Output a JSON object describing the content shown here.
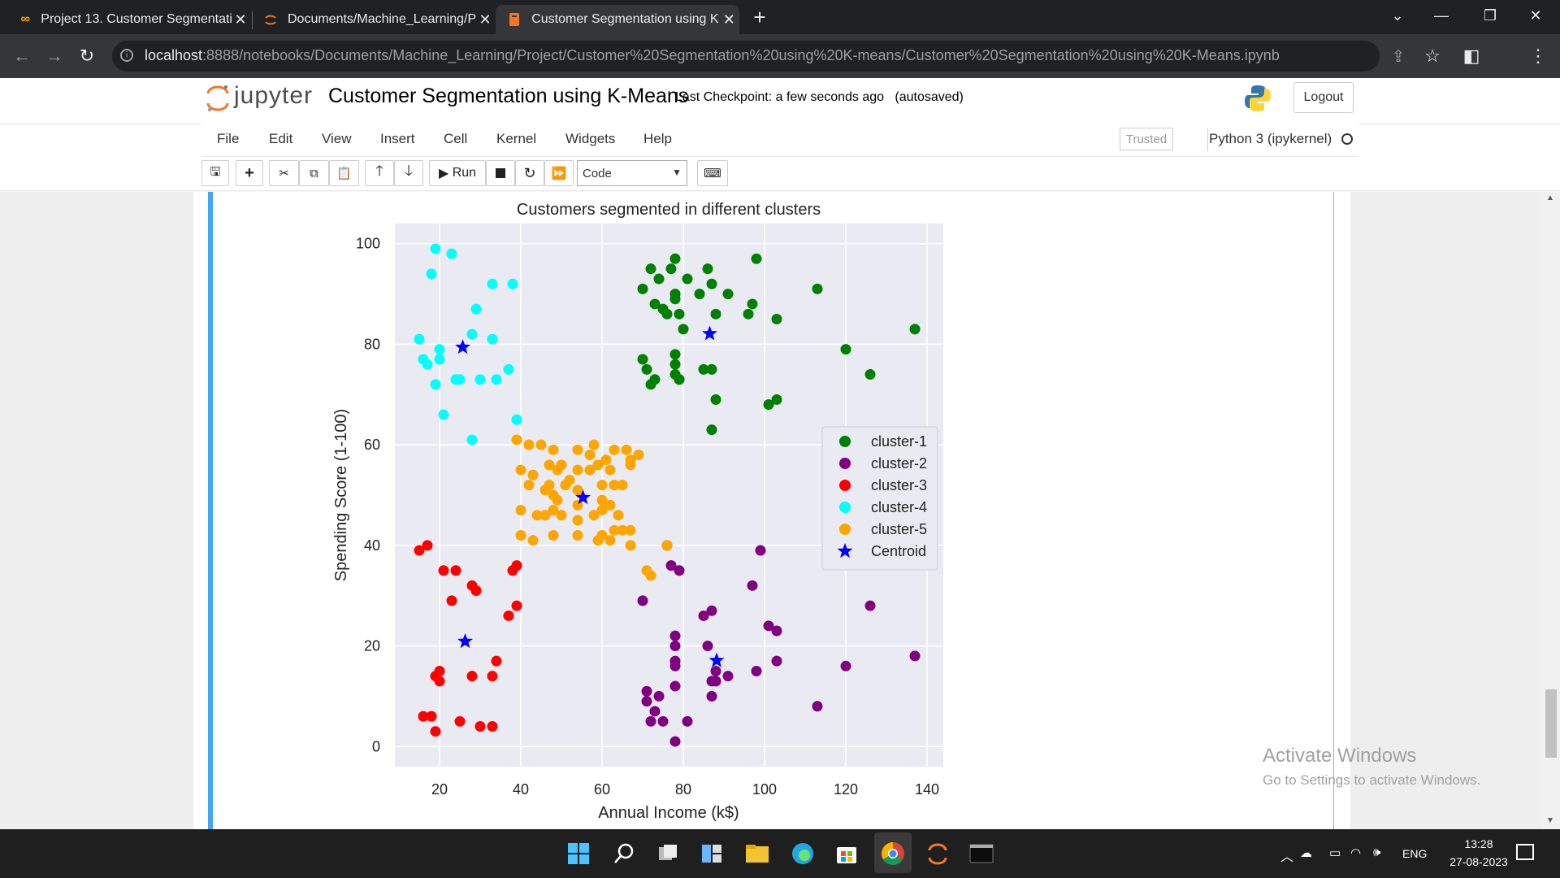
{
  "browser": {
    "tabs": [
      {
        "title": "Project 13. Customer Segmentati",
        "icon": "colab-icon",
        "active": false
      },
      {
        "title": "Documents/Machine_Learning/P",
        "icon": "jupyter-icon",
        "active": false
      },
      {
        "title": "Customer Segmentation using K",
        "icon": "notebook-icon",
        "active": true
      }
    ],
    "url_host": "localhost",
    "url_path": ":8888/notebooks/Documents/Machine_Learning/Project/Customer%20Segmentation%20using%20K-means/Customer%20Segmentation%20using%20K-Means.ipynb"
  },
  "jupyter": {
    "logo_text": "jupyter",
    "notebook_title": "Customer Segmentation using K-Means",
    "checkpoint": "Last Checkpoint: a few seconds ago",
    "autosaved": "(autosaved)",
    "logout": "Logout",
    "menu": [
      "File",
      "Edit",
      "View",
      "Insert",
      "Cell",
      "Kernel",
      "Widgets",
      "Help"
    ],
    "trusted": "Trusted",
    "kernel": "Python 3 (ipykernel)",
    "toolbar": {
      "run_label": "Run",
      "cell_type": "Code"
    }
  },
  "watermark": {
    "line1": "Activate Windows",
    "line2": "Go to Settings to activate Windows."
  },
  "taskbar": {
    "lang": "ENG",
    "time": "13:28",
    "date": "27-08-2023"
  },
  "chart_data": {
    "type": "scatter",
    "title": "Customers segmented in different clusters",
    "xlabel": "Annual Income (k$)",
    "ylabel": "Spending Score (1-100)",
    "xlim": [
      9,
      144
    ],
    "ylim": [
      -4,
      104
    ],
    "xticks": [
      20,
      40,
      60,
      80,
      100,
      120,
      140
    ],
    "yticks": [
      0,
      20,
      40,
      60,
      80,
      100
    ],
    "grid": true,
    "legend_position": "center-right",
    "series": [
      {
        "name": "cluster-1",
        "color": "#008000",
        "marker": "circle",
        "points": [
          [
            70,
            91
          ],
          [
            72,
            95
          ],
          [
            73,
            88
          ],
          [
            74,
            93
          ],
          [
            75,
            87
          ],
          [
            76,
            86
          ],
          [
            77,
            95
          ],
          [
            78,
            97
          ],
          [
            78,
            90
          ],
          [
            78,
            89
          ],
          [
            79,
            86
          ],
          [
            80,
            83
          ],
          [
            81,
            93
          ],
          [
            84,
            90
          ],
          [
            86,
            95
          ],
          [
            87,
            92
          ],
          [
            88,
            86
          ],
          [
            91,
            90
          ],
          [
            96,
            86
          ],
          [
            97,
            88
          ],
          [
            98,
            97
          ],
          [
            103,
            85
          ],
          [
            113,
            91
          ],
          [
            120,
            79
          ],
          [
            126,
            74
          ],
          [
            137,
            83
          ],
          [
            70,
            77
          ],
          [
            71,
            75
          ],
          [
            72,
            72
          ],
          [
            73,
            73
          ],
          [
            78,
            76
          ],
          [
            78,
            74
          ],
          [
            78,
            78
          ],
          [
            79,
            73
          ],
          [
            79,
            73
          ],
          [
            85,
            75
          ],
          [
            87,
            75
          ],
          [
            88,
            69
          ],
          [
            87,
            63
          ],
          [
            101,
            68
          ],
          [
            103,
            69
          ]
        ]
      },
      {
        "name": "cluster-2",
        "color": "#800080",
        "marker": "circle",
        "points": [
          [
            70,
            29
          ],
          [
            71,
            11
          ],
          [
            71,
            9
          ],
          [
            72,
            5
          ],
          [
            73,
            7
          ],
          [
            74,
            10
          ],
          [
            75,
            5
          ],
          [
            76,
            40
          ],
          [
            77,
            36
          ],
          [
            78,
            22
          ],
          [
            78,
            20
          ],
          [
            78,
            17
          ],
          [
            78,
            16
          ],
          [
            78,
            12
          ],
          [
            78,
            1
          ],
          [
            79,
            35
          ],
          [
            81,
            5
          ],
          [
            85,
            26
          ],
          [
            86,
            20
          ],
          [
            87,
            27
          ],
          [
            87,
            13
          ],
          [
            87,
            10
          ],
          [
            88,
            15
          ],
          [
            88,
            13
          ],
          [
            91,
            14
          ],
          [
            97,
            32
          ],
          [
            98,
            15
          ],
          [
            99,
            39
          ],
          [
            101,
            24
          ],
          [
            103,
            23
          ],
          [
            103,
            17
          ],
          [
            113,
            8
          ],
          [
            120,
            16
          ],
          [
            126,
            28
          ],
          [
            137,
            18
          ]
        ]
      },
      {
        "name": "cluster-3",
        "color": "#ff0000",
        "marker": "circle",
        "points": [
          [
            15,
            39
          ],
          [
            16,
            6
          ],
          [
            17,
            40
          ],
          [
            18,
            6
          ],
          [
            19,
            3
          ],
          [
            19,
            14
          ],
          [
            20,
            15
          ],
          [
            20,
            13
          ],
          [
            21,
            35
          ],
          [
            23,
            29
          ],
          [
            24,
            35
          ],
          [
            25,
            5
          ],
          [
            28,
            14
          ],
          [
            28,
            32
          ],
          [
            29,
            31
          ],
          [
            30,
            4
          ],
          [
            33,
            4
          ],
          [
            33,
            14
          ],
          [
            34,
            17
          ],
          [
            37,
            26
          ],
          [
            38,
            35
          ],
          [
            39,
            36
          ],
          [
            39,
            28
          ]
        ]
      },
      {
        "name": "cluster-4",
        "color": "#00ffff",
        "marker": "circle",
        "points": [
          [
            15,
            81
          ],
          [
            16,
            77
          ],
          [
            17,
            76
          ],
          [
            18,
            94
          ],
          [
            19,
            99
          ],
          [
            19,
            72
          ],
          [
            20,
            77
          ],
          [
            20,
            79
          ],
          [
            21,
            66
          ],
          [
            23,
            98
          ],
          [
            24,
            73
          ],
          [
            25,
            73
          ],
          [
            28,
            82
          ],
          [
            28,
            61
          ],
          [
            29,
            87
          ],
          [
            30,
            73
          ],
          [
            33,
            92
          ],
          [
            33,
            81
          ],
          [
            34,
            73
          ],
          [
            37,
            75
          ],
          [
            38,
            92
          ],
          [
            39,
            65
          ]
        ]
      },
      {
        "name": "cluster-5",
        "color": "#ffa500",
        "marker": "circle",
        "points": [
          [
            39,
            61
          ],
          [
            40,
            47
          ],
          [
            40,
            55
          ],
          [
            40,
            42
          ],
          [
            42,
            52
          ],
          [
            42,
            60
          ],
          [
            43,
            54
          ],
          [
            43,
            41
          ],
          [
            44,
            46
          ],
          [
            45,
            60
          ],
          [
            46,
            46
          ],
          [
            46,
            51
          ],
          [
            47,
            56
          ],
          [
            47,
            52
          ],
          [
            48,
            59
          ],
          [
            48,
            50
          ],
          [
            48,
            47
          ],
          [
            48,
            42
          ],
          [
            49,
            55
          ],
          [
            49,
            49
          ],
          [
            50,
            56
          ],
          [
            50,
            46
          ],
          [
            51,
            52
          ],
          [
            52,
            53
          ],
          [
            54,
            59
          ],
          [
            54,
            55
          ],
          [
            54,
            51
          ],
          [
            54,
            48
          ],
          [
            54,
            45
          ],
          [
            54,
            42
          ],
          [
            57,
            58
          ],
          [
            57,
            55
          ],
          [
            58,
            60
          ],
          [
            58,
            46
          ],
          [
            59,
            56
          ],
          [
            59,
            41
          ],
          [
            60,
            52
          ],
          [
            60,
            49
          ],
          [
            60,
            47
          ],
          [
            60,
            42
          ],
          [
            61,
            57
          ],
          [
            62,
            55
          ],
          [
            62,
            48
          ],
          [
            62,
            41
          ],
          [
            63,
            52
          ],
          [
            63,
            43
          ],
          [
            63,
            59
          ],
          [
            64,
            46
          ],
          [
            65,
            52
          ],
          [
            65,
            43
          ],
          [
            66,
            59
          ],
          [
            67,
            43
          ],
          [
            67,
            57
          ],
          [
            67,
            56
          ],
          [
            67,
            40
          ],
          [
            69,
            58
          ],
          [
            71,
            35
          ],
          [
            72,
            34
          ],
          [
            76,
            40
          ]
        ]
      },
      {
        "name": "Centroid",
        "color": "#0000ff",
        "marker": "star",
        "points": [
          [
            25.7,
            79.4
          ],
          [
            26.3,
            20.9
          ],
          [
            55.3,
            49.5
          ],
          [
            86.5,
            82.1
          ],
          [
            88.2,
            17.1
          ]
        ]
      }
    ]
  }
}
